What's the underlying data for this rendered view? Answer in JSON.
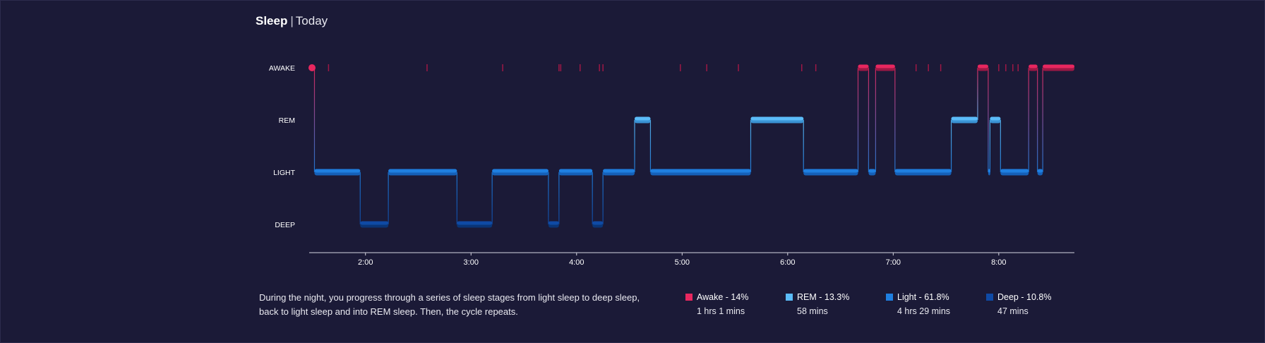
{
  "header": {
    "title": "Sleep",
    "period": "Today"
  },
  "chart_data": {
    "type": "step",
    "stages": [
      "AWAKE",
      "REM",
      "LIGHT",
      "DEEP"
    ],
    "x_range": [
      "1:28",
      "8:43"
    ],
    "x_ticks": [
      "2:00",
      "3:00",
      "4:00",
      "5:00",
      "6:00",
      "7:00",
      "8:00"
    ],
    "segments": [
      {
        "start": "1:28",
        "end": "1:31",
        "stage": "AWAKE"
      },
      {
        "start": "1:31",
        "end": "1:57",
        "stage": "LIGHT"
      },
      {
        "start": "1:57",
        "end": "2:13",
        "stage": "DEEP"
      },
      {
        "start": "2:13",
        "end": "2:52",
        "stage": "LIGHT"
      },
      {
        "start": "2:52",
        "end": "3:12",
        "stage": "DEEP"
      },
      {
        "start": "3:12",
        "end": "3:44",
        "stage": "LIGHT"
      },
      {
        "start": "3:44",
        "end": "3:50",
        "stage": "DEEP"
      },
      {
        "start": "3:50",
        "end": "4:09",
        "stage": "LIGHT"
      },
      {
        "start": "4:09",
        "end": "4:15",
        "stage": "DEEP"
      },
      {
        "start": "4:15",
        "end": "4:33",
        "stage": "LIGHT"
      },
      {
        "start": "4:33",
        "end": "4:42",
        "stage": "REM"
      },
      {
        "start": "4:42",
        "end": "5:39",
        "stage": "LIGHT"
      },
      {
        "start": "5:39",
        "end": "6:09",
        "stage": "REM"
      },
      {
        "start": "6:09",
        "end": "6:40",
        "stage": "LIGHT"
      },
      {
        "start": "6:40",
        "end": "6:46",
        "stage": "AWAKE"
      },
      {
        "start": "6:46",
        "end": "6:50",
        "stage": "LIGHT"
      },
      {
        "start": "6:50",
        "end": "7:01",
        "stage": "AWAKE"
      },
      {
        "start": "7:01",
        "end": "7:33",
        "stage": "LIGHT"
      },
      {
        "start": "7:33",
        "end": "7:48",
        "stage": "REM"
      },
      {
        "start": "7:48",
        "end": "7:54",
        "stage": "AWAKE"
      },
      {
        "start": "7:54",
        "end": "7:55",
        "stage": "LIGHT"
      },
      {
        "start": "7:55",
        "end": "8:01",
        "stage": "REM"
      },
      {
        "start": "8:01",
        "end": "8:17",
        "stage": "LIGHT"
      },
      {
        "start": "8:17",
        "end": "8:22",
        "stage": "AWAKE"
      },
      {
        "start": "8:22",
        "end": "8:25",
        "stage": "LIGHT"
      },
      {
        "start": "8:25",
        "end": "8:43",
        "stage": "AWAKE"
      }
    ],
    "awake_marks": [
      "1:39",
      "2:35",
      "3:18",
      "3:50",
      "3:51",
      "4:02",
      "4:13",
      "4:15",
      "4:59",
      "5:14",
      "5:32",
      "6:08",
      "6:16",
      "7:13",
      "7:20",
      "7:27",
      "8:00",
      "8:04",
      "8:08",
      "8:11"
    ],
    "legend": [
      {
        "label": "Awake - 14%",
        "duration": "1 hrs 1 mins",
        "color": "#e8275f"
      },
      {
        "label": "REM - 13.3%",
        "duration": "58 mins",
        "color": "#5bbcf9"
      },
      {
        "label": "Light - 61.8%",
        "duration": "4 hrs 29 mins",
        "color": "#1f7fe0"
      },
      {
        "label": "Deep - 10.8%",
        "duration": "47 mins",
        "color": "#0f4aa5"
      }
    ]
  },
  "description": "During the night, you progress through a series of sleep stages from light sleep to deep sleep, back to light sleep and into REM sleep. Then, the cycle repeats.",
  "colors": {
    "AWAKE": "#e8275f",
    "REM": "#5bbcf9",
    "LIGHT": "#1f7fe0",
    "DEEP": "#0f4aa5",
    "AWAKE_dark": "#9e1845",
    "REM_dark": "#3a93d4",
    "LIGHT_dark": "#1560b8",
    "DEEP_dark": "#0a3577",
    "background": "#1b1a37",
    "axis": "#d6d6e0"
  }
}
